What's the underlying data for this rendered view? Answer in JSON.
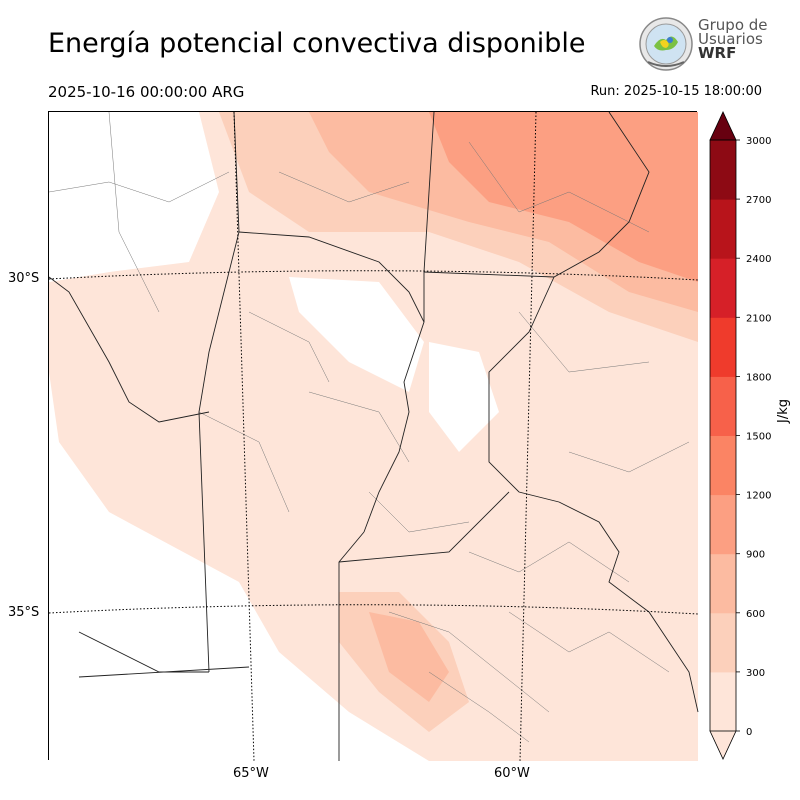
{
  "header": {
    "title": "Energía potencial convectiva disponible",
    "valid_time": "2025-10-16 00:00:00 ARG",
    "run_time": "Run: 2025-10-15 18:00:00"
  },
  "logo": {
    "line1": "Grupo de",
    "line2": "Usuarios",
    "line3": "WRF"
  },
  "map": {
    "lat_labels": [
      "30°S",
      "35°S"
    ],
    "lon_labels": [
      "65°W",
      "60°W"
    ]
  },
  "colorbar": {
    "unit": "J/kg",
    "ticks": [
      "0",
      "300",
      "600",
      "900",
      "1200",
      "1500",
      "1800",
      "2100",
      "2400",
      "2700",
      "3000"
    ],
    "colors": [
      "#fee5d9",
      "#fcd0bb",
      "#fcbba1",
      "#fc9f82",
      "#fb8464",
      "#f7614a",
      "#ef3b2c",
      "#d62028",
      "#b8141b",
      "#8d0a14",
      "#670010"
    ],
    "extend": "both"
  }
}
